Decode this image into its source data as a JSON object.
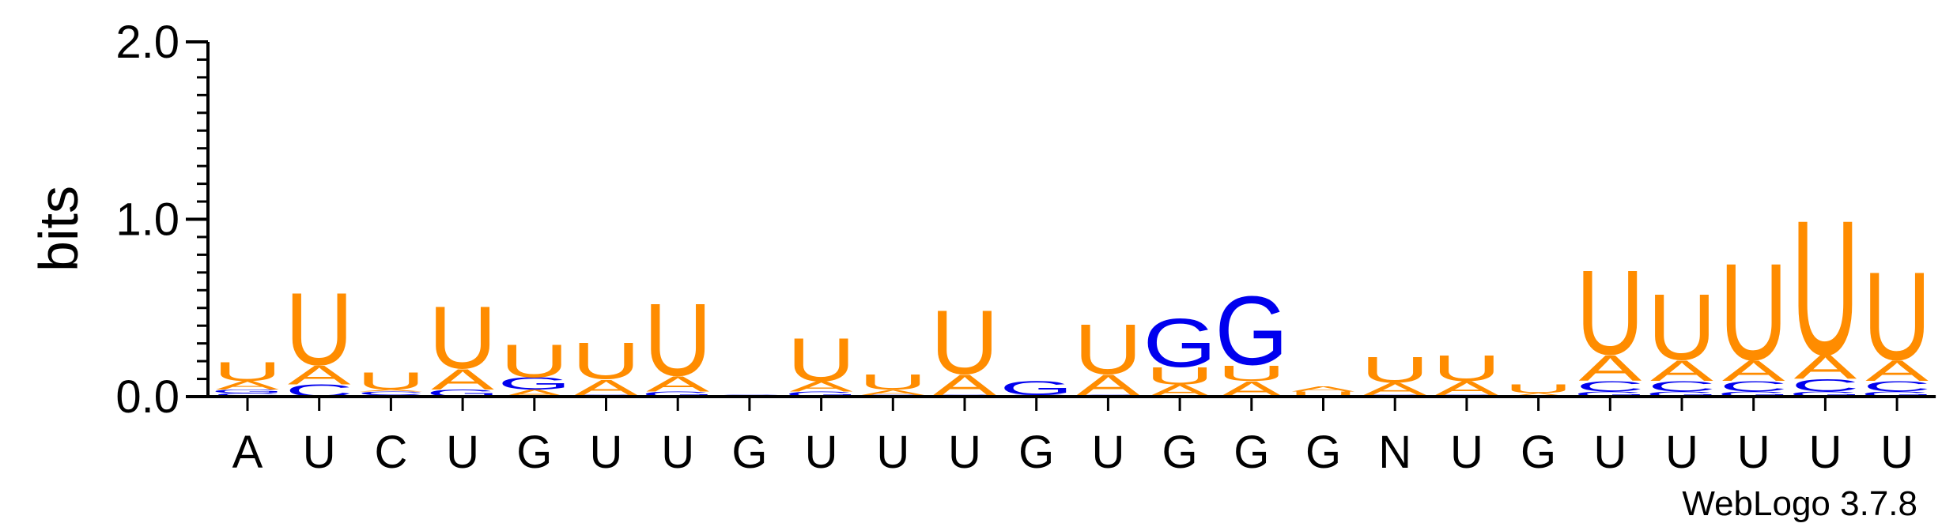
{
  "chart_data": {
    "type": "sequence-logo",
    "ylabel": "bits",
    "ylim": [
      0,
      2.0
    ],
    "yticks": [
      {
        "value": 0.0,
        "label": "0.0"
      },
      {
        "value": 1.0,
        "label": "1.0"
      },
      {
        "value": 2.0,
        "label": "2.0"
      }
    ],
    "footer": "WebLogo 3.7.8",
    "colors": {
      "A": "#FF8C00",
      "U": "#FF8C00",
      "C": "#0000EE",
      "G": "#0000EE"
    },
    "positions": [
      {
        "label": "A",
        "stack": [
          {
            "letter": "C",
            "bits": 0.02
          },
          {
            "letter": "G",
            "bits": 0.02
          },
          {
            "letter": "A",
            "bits": 0.05
          },
          {
            "letter": "U",
            "bits": 0.11
          }
        ]
      },
      {
        "label": "U",
        "stack": [
          {
            "letter": "C",
            "bits": 0.07
          },
          {
            "letter": "A",
            "bits": 0.11
          },
          {
            "letter": "U",
            "bits": 0.42
          }
        ]
      },
      {
        "label": "C",
        "stack": [
          {
            "letter": "G",
            "bits": 0.01
          },
          {
            "letter": "C",
            "bits": 0.02
          },
          {
            "letter": "A",
            "bits": 0.01
          },
          {
            "letter": "U",
            "bits": 0.1
          }
        ]
      },
      {
        "label": "U",
        "stack": [
          {
            "letter": "G",
            "bits": 0.04
          },
          {
            "letter": "A",
            "bits": 0.12
          },
          {
            "letter": "U",
            "bits": 0.36
          }
        ]
      },
      {
        "label": "G",
        "stack": [
          {
            "letter": "A",
            "bits": 0.04
          },
          {
            "letter": "G",
            "bits": 0.07
          },
          {
            "letter": "U",
            "bits": 0.19
          }
        ]
      },
      {
        "label": "U",
        "stack": [
          {
            "letter": "G",
            "bits": 0.01
          },
          {
            "letter": "A",
            "bits": 0.09
          },
          {
            "letter": "U",
            "bits": 0.21
          }
        ]
      },
      {
        "label": "U",
        "stack": [
          {
            "letter": "G",
            "bits": 0.03
          },
          {
            "letter": "A",
            "bits": 0.09
          },
          {
            "letter": "U",
            "bits": 0.42
          }
        ]
      },
      {
        "label": "G",
        "stack": [
          {
            "letter": "G",
            "bits": 0.01
          }
        ]
      },
      {
        "label": "U",
        "stack": [
          {
            "letter": "G",
            "bits": 0.03
          },
          {
            "letter": "A",
            "bits": 0.06
          },
          {
            "letter": "U",
            "bits": 0.25
          }
        ]
      },
      {
        "label": "U",
        "stack": [
          {
            "letter": "G",
            "bits": 0.01
          },
          {
            "letter": "A",
            "bits": 0.03
          },
          {
            "letter": "U",
            "bits": 0.09
          }
        ]
      },
      {
        "label": "U",
        "stack": [
          {
            "letter": "G",
            "bits": 0.01
          },
          {
            "letter": "A",
            "bits": 0.12
          },
          {
            "letter": "U",
            "bits": 0.37
          }
        ]
      },
      {
        "label": "G",
        "stack": [
          {
            "letter": "C",
            "bits": 0.01
          },
          {
            "letter": "G",
            "bits": 0.08
          }
        ]
      },
      {
        "label": "U",
        "stack": [
          {
            "letter": "C",
            "bits": 0.01
          },
          {
            "letter": "A",
            "bits": 0.12
          },
          {
            "letter": "U",
            "bits": 0.29
          }
        ]
      },
      {
        "label": "G",
        "stack": [
          {
            "letter": "A",
            "bits": 0.07
          },
          {
            "letter": "U",
            "bits": 0.1
          },
          {
            "letter": "G",
            "bits": 0.28
          }
        ]
      },
      {
        "label": "G",
        "stack": [
          {
            "letter": "A",
            "bits": 0.09
          },
          {
            "letter": "U",
            "bits": 0.09
          },
          {
            "letter": "G",
            "bits": 0.4
          }
        ]
      },
      {
        "label": "G",
        "stack": [
          {
            "letter": "U",
            "bits": 0.03
          },
          {
            "letter": "A",
            "bits": 0.03
          }
        ]
      },
      {
        "label": "N",
        "stack": [
          {
            "letter": "G",
            "bits": 0.01
          },
          {
            "letter": "A",
            "bits": 0.07
          },
          {
            "letter": "U",
            "bits": 0.15
          }
        ]
      },
      {
        "label": "U",
        "stack": [
          {
            "letter": "G",
            "bits": 0.01
          },
          {
            "letter": "A",
            "bits": 0.08
          },
          {
            "letter": "U",
            "bits": 0.15
          }
        ]
      },
      {
        "label": "G",
        "stack": [
          {
            "letter": "A",
            "bits": 0.02
          },
          {
            "letter": "U",
            "bits": 0.05
          }
        ]
      },
      {
        "label": "U",
        "stack": [
          {
            "letter": "G",
            "bits": 0.03
          },
          {
            "letter": "C",
            "bits": 0.06
          },
          {
            "letter": "A",
            "bits": 0.15
          },
          {
            "letter": "U",
            "bits": 0.49
          }
        ]
      },
      {
        "label": "U",
        "stack": [
          {
            "letter": "G",
            "bits": 0.03
          },
          {
            "letter": "C",
            "bits": 0.06
          },
          {
            "letter": "A",
            "bits": 0.12
          },
          {
            "letter": "U",
            "bits": 0.38
          }
        ]
      },
      {
        "label": "U",
        "stack": [
          {
            "letter": "G",
            "bits": 0.03
          },
          {
            "letter": "C",
            "bits": 0.06
          },
          {
            "letter": "A",
            "bits": 0.12
          },
          {
            "letter": "U",
            "bits": 0.56
          }
        ]
      },
      {
        "label": "U",
        "stack": [
          {
            "letter": "G",
            "bits": 0.03
          },
          {
            "letter": "C",
            "bits": 0.07
          },
          {
            "letter": "A",
            "bits": 0.14
          },
          {
            "letter": "U",
            "bits": 0.78
          }
        ]
      },
      {
        "label": "U",
        "stack": [
          {
            "letter": "G",
            "bits": 0.03
          },
          {
            "letter": "C",
            "bits": 0.06
          },
          {
            "letter": "A",
            "bits": 0.12
          },
          {
            "letter": "U",
            "bits": 0.51
          }
        ]
      }
    ]
  }
}
